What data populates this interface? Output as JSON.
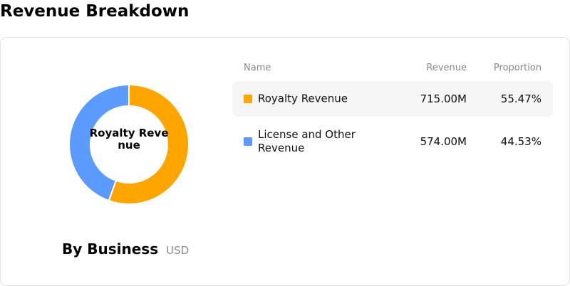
{
  "page": {
    "title": "Revenue Breakdown"
  },
  "donut": {
    "center_label": "Royalty Revenue"
  },
  "footer": {
    "title": "By Business",
    "unit": "USD"
  },
  "table": {
    "headers": {
      "name": "Name",
      "revenue": "Revenue",
      "proportion": "Proportion"
    },
    "rows": [
      {
        "name": "Royalty Revenue",
        "revenue": "715.00M",
        "proportion": "55.47%",
        "color": "#FFA500"
      },
      {
        "name": "License and Other Revenue",
        "revenue": "574.00M",
        "proportion": "44.53%",
        "color": "#5B9BFF"
      }
    ]
  },
  "chart_data": {
    "type": "pie",
    "variant": "donut",
    "title": "By Business",
    "unit": "USD",
    "categories": [
      "Royalty Revenue",
      "License and Other Revenue"
    ],
    "values": [
      715.0,
      574.0
    ],
    "percentages": [
      55.47,
      44.53
    ],
    "colors": [
      "#FFA500",
      "#5B9BFF"
    ],
    "legend": "right"
  }
}
